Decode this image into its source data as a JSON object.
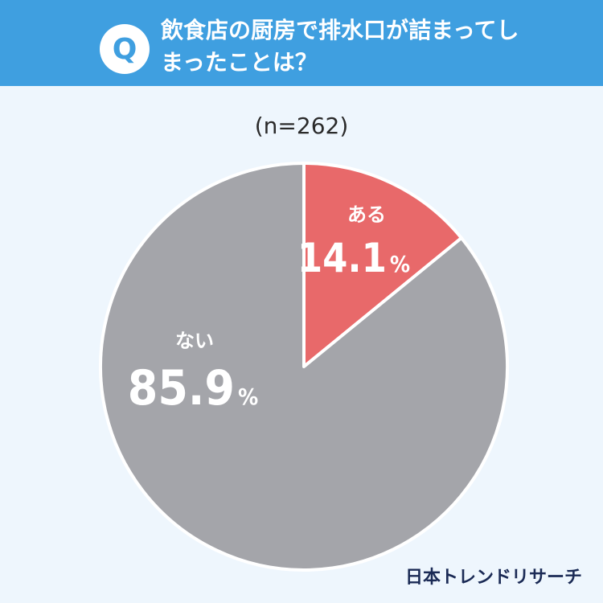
{
  "header": {
    "badge": "Q",
    "question": "飲食店の厨房で排水口が詰まってしまったことは？"
  },
  "sample_label": "(n=262)",
  "footer": {
    "brand": "日本トレンドリサーチ"
  },
  "colors": {
    "header_bg": "#3f9fe0",
    "page_bg": "#eef6fd",
    "slice_yes": "#e8696a",
    "slice_no": "#a4a5aa"
  },
  "chart_data": {
    "type": "pie",
    "slices": [
      {
        "label": "ある",
        "value": 14.1,
        "display": "14.1",
        "unit": "%",
        "color": "#e8696a"
      },
      {
        "label": "ない",
        "value": 85.9,
        "display": "85.9",
        "unit": "%",
        "color": "#a4a5aa"
      }
    ],
    "start": "12 o'clock, clockwise"
  }
}
